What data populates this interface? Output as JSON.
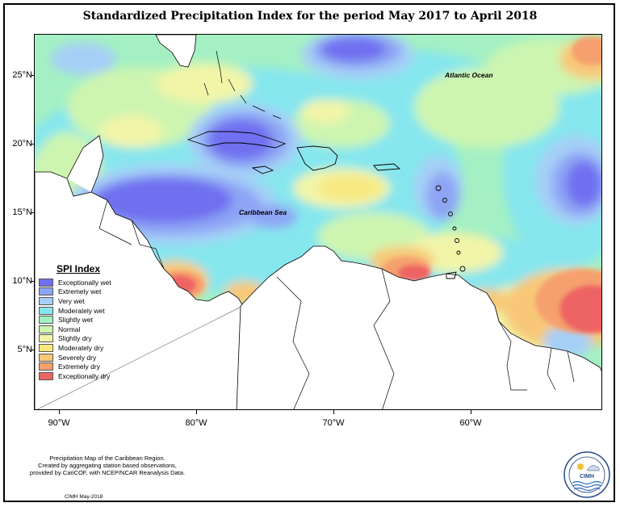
{
  "title": "Standardized Precipitation Index for the period May 2017 to April 2018",
  "y_axis_labels": [
    "25°N",
    "20°N",
    "15°N",
    "10°N",
    "5°N"
  ],
  "x_axis_labels": [
    "90°W",
    "80°W",
    "70°W",
    "60°W"
  ],
  "map_labels": {
    "atlantic": "Atlantic Ocean",
    "caribbean": "Caribbean Sea"
  },
  "legend": {
    "title": "SPI Index",
    "items": [
      {
        "label": "Exceptionally wet",
        "color": "#6f6ff0"
      },
      {
        "label": "Extremely wet",
        "color": "#8ea4f4"
      },
      {
        "label": "Very wet",
        "color": "#a6cff7"
      },
      {
        "label": "Moderately wet",
        "color": "#86e6ee"
      },
      {
        "label": "Slightly wet",
        "color": "#a4f0c4"
      },
      {
        "label": "Normal",
        "color": "#cdf5b0"
      },
      {
        "label": "Slightly dry",
        "color": "#f2f5a8"
      },
      {
        "label": "Moderately dry",
        "color": "#f8e880"
      },
      {
        "label": "Severely dry",
        "color": "#f8c878"
      },
      {
        "label": "Extremely dry",
        "color": "#f6a06e"
      },
      {
        "label": "Exceptionally dry",
        "color": "#ee6464"
      }
    ]
  },
  "caption": {
    "line1": "Precipitation Map of the Caribbean Region.",
    "line2": "Created by aggregating station based observations,",
    "line3": "provided by CariCOF, with NCEP/NCAR Reanalysis Data."
  },
  "credit": "CIMH May-2018",
  "logo_text": "CIMH"
}
